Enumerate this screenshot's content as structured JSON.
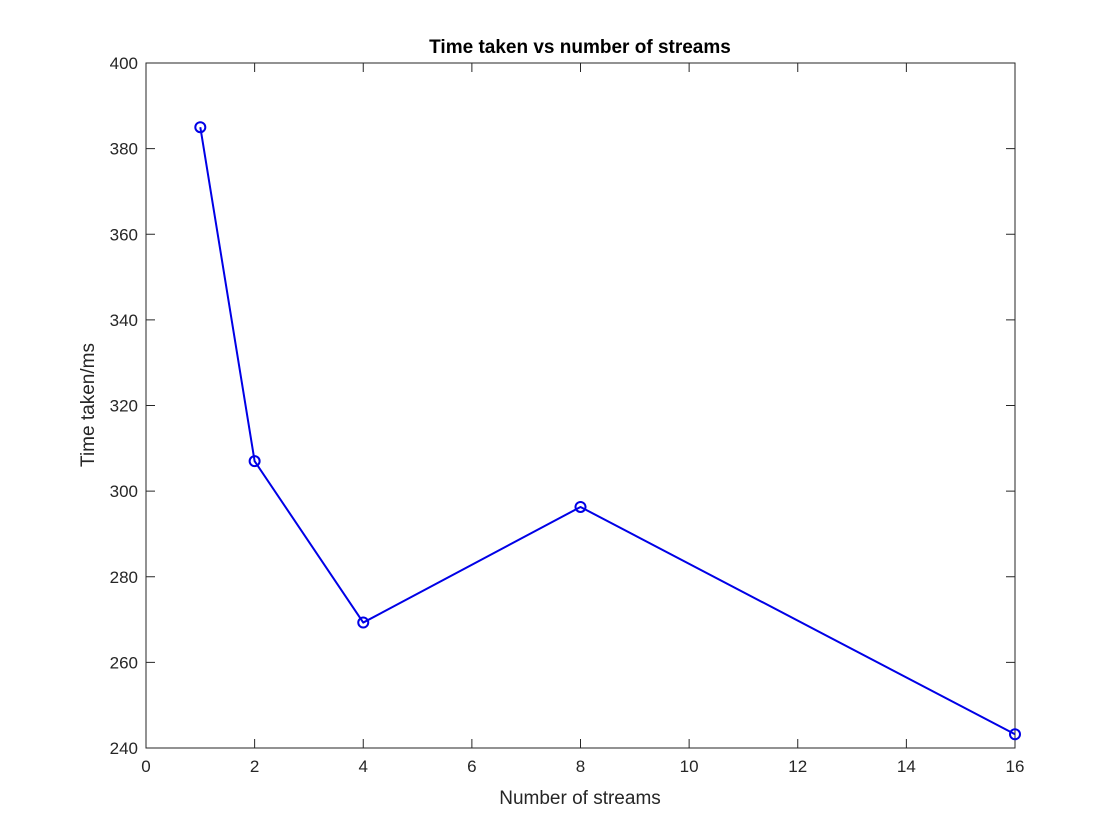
{
  "chart_data": {
    "type": "line",
    "title": "Time taken vs number of streams",
    "xlabel": "Number of streams",
    "ylabel": "Time taken/ms",
    "xlim": [
      0,
      16
    ],
    "ylim": [
      240,
      400
    ],
    "xticks": [
      0,
      2,
      4,
      6,
      8,
      10,
      12,
      14,
      16
    ],
    "yticks": [
      240,
      260,
      280,
      300,
      320,
      340,
      360,
      380,
      400
    ],
    "grid": false,
    "series": [
      {
        "color": "#0000e6",
        "marker": "circle",
        "x": [
          1,
          2,
          4,
          8,
          16
        ],
        "y": [
          385,
          307,
          269.3,
          296.3,
          243.2
        ]
      }
    ]
  }
}
